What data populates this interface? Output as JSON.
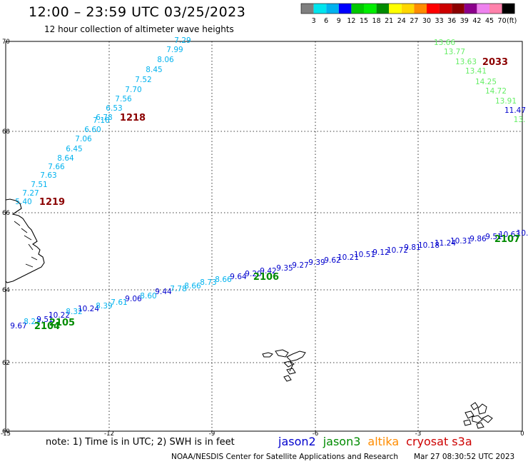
{
  "header": {
    "title": "12:00 – 23:59 UTC 03/25/2023",
    "subtitle": "12 hour collection of altimeter wave heights"
  },
  "colorbar": {
    "labels": [
      "3",
      "6",
      "9",
      "12",
      "15",
      "18",
      "21",
      "24",
      "27",
      "30",
      "33",
      "36",
      "39",
      "42",
      "45",
      "70"
    ],
    "unit": "(ft)",
    "colors": [
      "#7f7f7f",
      "#00e5ee",
      "#00b2ee",
      "#0000ff",
      "#00c800",
      "#00ee00",
      "#008b00",
      "#ffff00",
      "#ffd700",
      "#ff8c00",
      "#ff0000",
      "#cd0000",
      "#8b0000",
      "#8b008b",
      "#ee82ee",
      "#ff82ab",
      "#000000"
    ]
  },
  "map": {
    "lat_labels": [
      "70",
      "68",
      "66",
      "64",
      "62",
      "60"
    ],
    "lon_labels": [
      "-15",
      "-12",
      "-9",
      "-6",
      "-3",
      "0"
    ],
    "extent": {
      "lon": [
        -15,
        0
      ],
      "lat": [
        60,
        70
      ]
    }
  },
  "tracks": [
    {
      "id": "1218",
      "label_color": "#8b0000",
      "points": [
        {
          "v": "7.29",
          "c": "#00b2ee"
        },
        {
          "v": "7.99",
          "c": "#00b2ee"
        },
        {
          "v": "8.06",
          "c": "#00b2ee"
        },
        {
          "v": "8.45",
          "c": "#00b2ee"
        },
        {
          "v": "7.52",
          "c": "#00b2ee"
        },
        {
          "v": "7.70",
          "c": "#00b2ee"
        },
        {
          "v": "7.56",
          "c": "#00b2ee"
        },
        {
          "v": "6.53",
          "c": "#00b2ee"
        },
        {
          "v": "6.78",
          "c": "#00b2ee"
        },
        {
          "v": "7.16",
          "c": "#00b2ee"
        },
        {
          "v": "6.60",
          "c": "#00b2ee"
        }
      ]
    },
    {
      "id": "1219",
      "label_color": "#8b0000",
      "points": [
        {
          "v": "7.06",
          "c": "#00b2ee"
        },
        {
          "v": "6.45",
          "c": "#00b2ee"
        },
        {
          "v": "8.64",
          "c": "#00b2ee"
        },
        {
          "v": "7.66",
          "c": "#00b2ee"
        },
        {
          "v": "7.63",
          "c": "#00b2ee"
        },
        {
          "v": "7.51",
          "c": "#00b2ee"
        },
        {
          "v": "7.27",
          "c": "#00b2ee"
        },
        {
          "v": "5.40",
          "c": "#00b2ee"
        }
      ]
    },
    {
      "id": "2033",
      "label_color": "#8b0000",
      "points": [
        {
          "v": "13.66",
          "c": "#66ee66"
        },
        {
          "v": "13.77",
          "c": "#66ee66"
        },
        {
          "v": "13.63",
          "c": "#66ee66"
        },
        {
          "v": "13.41",
          "c": "#66ee66"
        },
        {
          "v": "14.25",
          "c": "#66ee66"
        },
        {
          "v": "14.72",
          "c": "#66ee66"
        },
        {
          "v": "13.91",
          "c": "#66ee66"
        },
        {
          "v": "11.47",
          "c": "#0000cd"
        },
        {
          "v": "13.",
          "c": "#66ee66"
        }
      ]
    },
    {
      "id": "2104-2107",
      "labels": [
        "2104",
        "2105",
        "2106",
        "2107"
      ],
      "label_color": "#008b00",
      "points": [
        {
          "v": "9.67",
          "c": "#0000cd"
        },
        {
          "v": "8.23",
          "c": "#00b2ee"
        },
        {
          "v": "9.51",
          "c": "#0000cd"
        },
        {
          "v": "10.22",
          "c": "#0000cd"
        },
        {
          "v": "8.32",
          "c": "#00b2ee"
        },
        {
          "v": "10.24",
          "c": "#0000cd"
        },
        {
          "v": "8.39",
          "c": "#00b2ee"
        },
        {
          "v": "7.61",
          "c": "#00b2ee"
        },
        {
          "v": "9.06",
          "c": "#0000cd"
        },
        {
          "v": "8.60",
          "c": "#00b2ee"
        },
        {
          "v": "9.44",
          "c": "#0000cd"
        },
        {
          "v": "7.78",
          "c": "#00b2ee"
        },
        {
          "v": "8.66",
          "c": "#00b2ee"
        },
        {
          "v": "8.73",
          "c": "#00b2ee"
        },
        {
          "v": "8.66",
          "c": "#00b2ee"
        },
        {
          "v": "9.64",
          "c": "#0000cd"
        },
        {
          "v": "9.20",
          "c": "#0000cd"
        },
        {
          "v": "9.42",
          "c": "#0000cd"
        },
        {
          "v": "9.35",
          "c": "#0000cd"
        },
        {
          "v": "9.27",
          "c": "#0000cd"
        },
        {
          "v": "9.39",
          "c": "#0000cd"
        },
        {
          "v": "9.62",
          "c": "#0000cd"
        },
        {
          "v": "10.21",
          "c": "#0000cd"
        },
        {
          "v": "10.51",
          "c": "#0000cd"
        },
        {
          "v": "9.12",
          "c": "#0000cd"
        },
        {
          "v": "10.72",
          "c": "#0000cd"
        },
        {
          "v": "9.81",
          "c": "#0000cd"
        },
        {
          "v": "10.18",
          "c": "#0000cd"
        },
        {
          "v": "11.24",
          "c": "#0000cd"
        },
        {
          "v": "10.31",
          "c": "#0000cd"
        },
        {
          "v": "9.86",
          "c": "#0000cd"
        },
        {
          "v": "9.51",
          "c": "#0000cd"
        },
        {
          "v": "10.63",
          "c": "#0000cd"
        },
        {
          "v": "10.",
          "c": "#0000cd"
        }
      ]
    }
  ],
  "footer": {
    "note": "note: 1) Time is in UTC; 2) SWH is in feet",
    "legend": [
      {
        "name": "jason2",
        "color": "#0000cd"
      },
      {
        "name": "jason3",
        "color": "#008b00"
      },
      {
        "name": "altika",
        "color": "#ff8c00"
      },
      {
        "name": "cryosat s3a",
        "color": "#cd0000"
      }
    ],
    "credit": "NOAA/NESDIS Center for Satellite Applications and Research",
    "timestamp": "Mar 27 08:30:52 UTC 2023"
  }
}
